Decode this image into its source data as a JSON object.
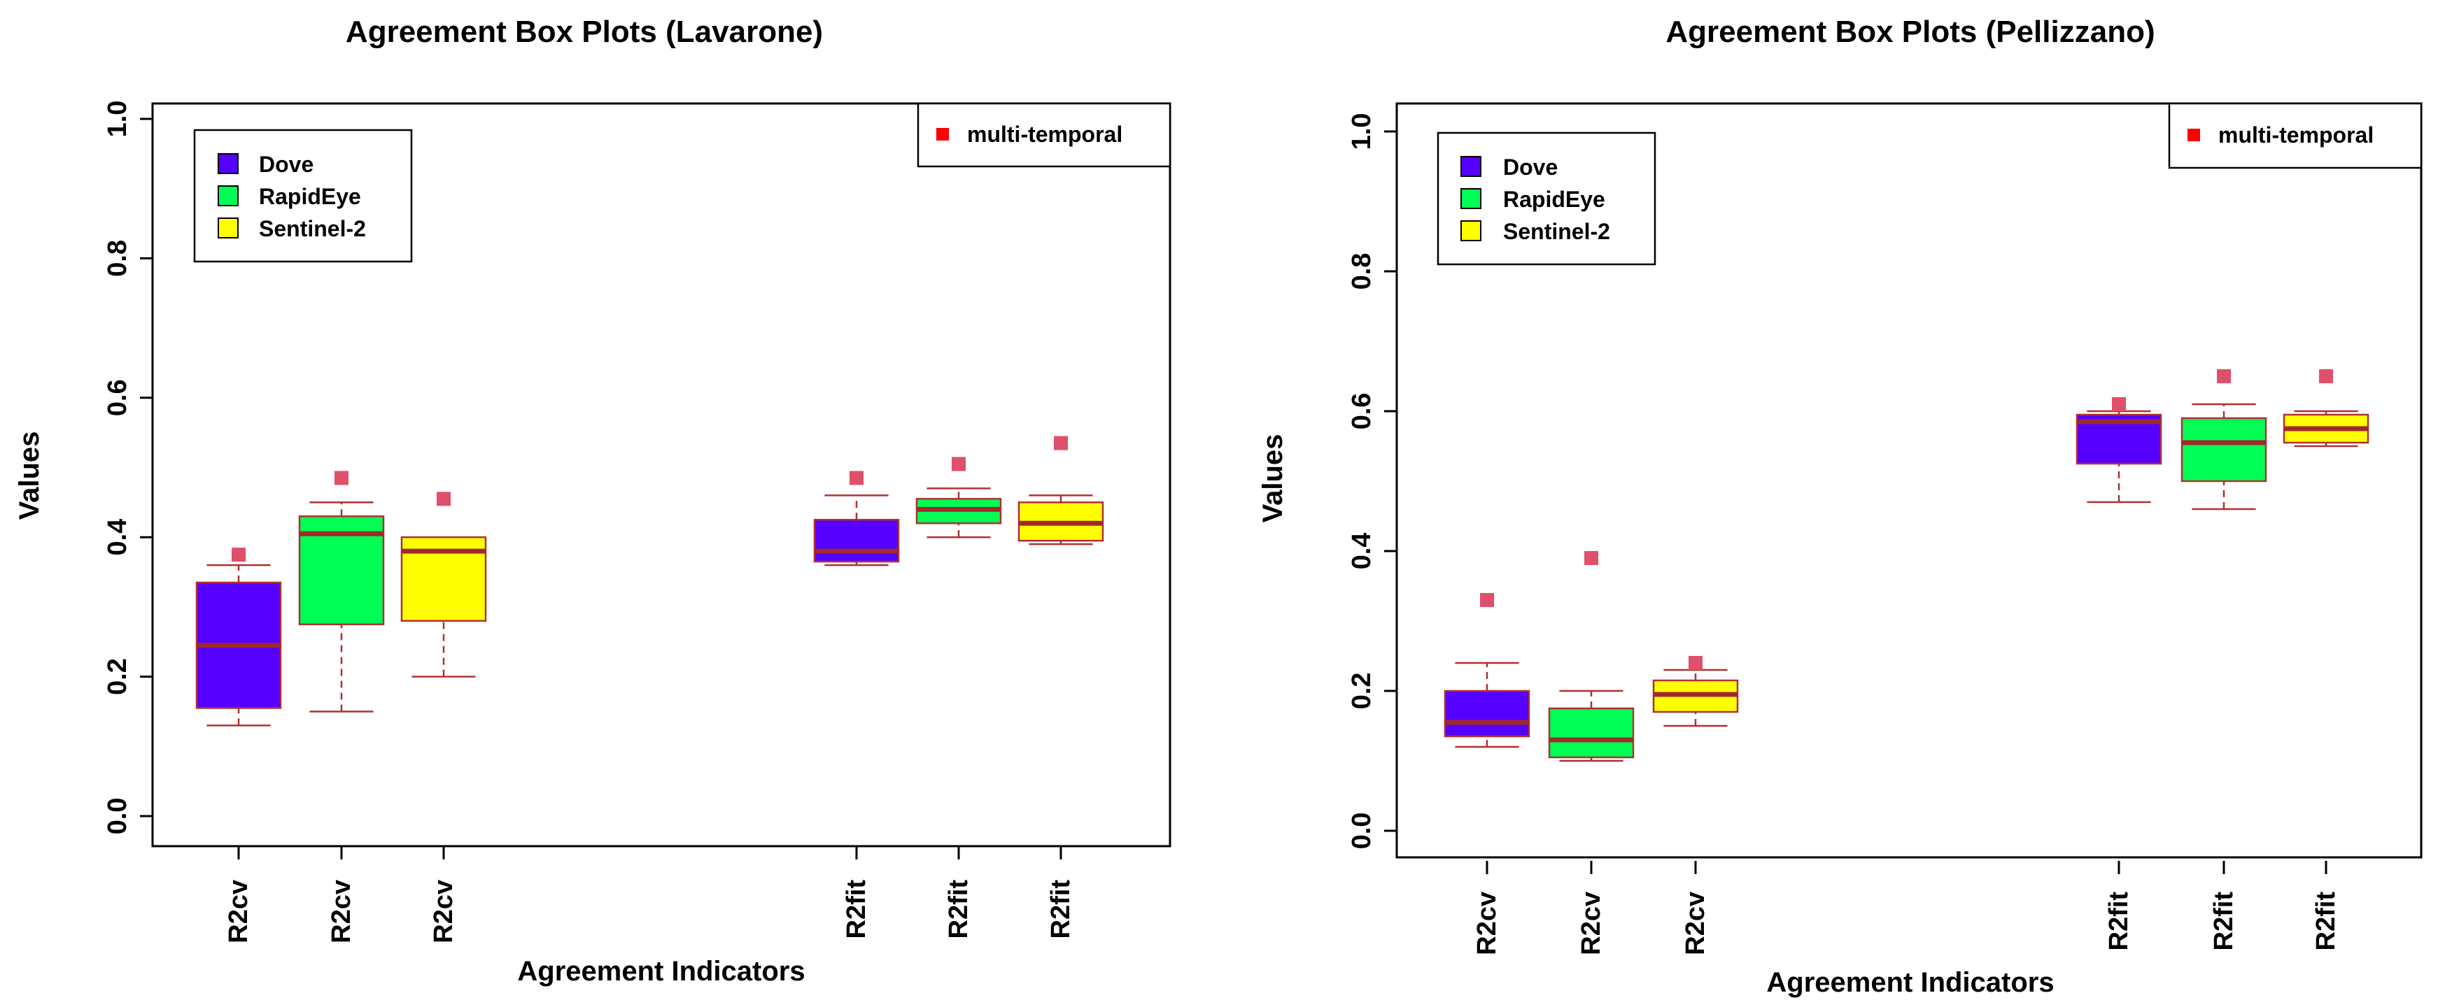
{
  "chart_data": [
    {
      "type": "boxplot",
      "title": "Agreement Box Plots (Lavarone)",
      "xlabel": "Agreement Indicators",
      "ylabel": "Values",
      "ylim": [
        0.0,
        1.0
      ],
      "yticks": [
        "0.0",
        "0.2",
        "0.4",
        "0.6",
        "0.8",
        "1.0"
      ],
      "legend": {
        "placement": "top-left",
        "items": [
          {
            "label": "Dove",
            "color": "#5500ff"
          },
          {
            "label": "RapidEye",
            "color": "#00ff55"
          },
          {
            "label": "Sentinel-2",
            "color": "#ffff00"
          }
        ]
      },
      "marker_legend": {
        "placement": "top-right",
        "label": "multi-temporal",
        "color": "#ff0000"
      },
      "boxes": [
        {
          "label": "R2cv",
          "series": "Dove",
          "color": "#5500ff",
          "whisker_low": 0.13,
          "q1": 0.155,
          "median": 0.245,
          "q3": 0.335,
          "whisker_high": 0.36,
          "multi_temporal": 0.375
        },
        {
          "label": "R2cv",
          "series": "RapidEye",
          "color": "#00ff55",
          "whisker_low": 0.15,
          "q1": 0.275,
          "median": 0.405,
          "q3": 0.43,
          "whisker_high": 0.45,
          "multi_temporal": 0.485
        },
        {
          "label": "R2cv",
          "series": "Sentinel-2",
          "color": "#ffff00",
          "whisker_low": 0.2,
          "q1": 0.28,
          "median": 0.38,
          "q3": 0.4,
          "whisker_high": 0.4,
          "multi_temporal": 0.455
        },
        {
          "label": "R2fit",
          "series": "Dove",
          "color": "#5500ff",
          "whisker_low": 0.36,
          "q1": 0.365,
          "median": 0.38,
          "q3": 0.425,
          "whisker_high": 0.46,
          "multi_temporal": 0.485
        },
        {
          "label": "R2fit",
          "series": "RapidEye",
          "color": "#00ff55",
          "whisker_low": 0.4,
          "q1": 0.42,
          "median": 0.44,
          "q3": 0.455,
          "whisker_high": 0.47,
          "multi_temporal": 0.505
        },
        {
          "label": "R2fit",
          "series": "Sentinel-2",
          "color": "#ffff00",
          "whisker_low": 0.39,
          "q1": 0.395,
          "median": 0.42,
          "q3": 0.45,
          "whisker_high": 0.46,
          "multi_temporal": 0.535
        }
      ]
    },
    {
      "type": "boxplot",
      "title": "Agreement Box Plots (Pellizzano)",
      "xlabel": "Agreement Indicators",
      "ylabel": "Values",
      "ylim": [
        0.0,
        1.0
      ],
      "yticks": [
        "0.0",
        "0.2",
        "0.4",
        "0.6",
        "0.8",
        "1.0"
      ],
      "legend": {
        "placement": "top-left",
        "items": [
          {
            "label": "Dove",
            "color": "#5500ff"
          },
          {
            "label": "RapidEye",
            "color": "#00ff55"
          },
          {
            "label": "Sentinel-2",
            "color": "#ffff00"
          }
        ]
      },
      "marker_legend": {
        "placement": "top-right",
        "label": "multi-temporal",
        "color": "#ff0000"
      },
      "boxes": [
        {
          "label": "R2cv",
          "series": "Dove",
          "color": "#5500ff",
          "whisker_low": 0.12,
          "q1": 0.135,
          "median": 0.155,
          "q3": 0.2,
          "whisker_high": 0.24,
          "multi_temporal": 0.33
        },
        {
          "label": "R2cv",
          "series": "RapidEye",
          "color": "#00ff55",
          "whisker_low": 0.1,
          "q1": 0.105,
          "median": 0.13,
          "q3": 0.175,
          "whisker_high": 0.2,
          "multi_temporal": 0.39
        },
        {
          "label": "R2cv",
          "series": "Sentinel-2",
          "color": "#ffff00",
          "whisker_low": 0.15,
          "q1": 0.17,
          "median": 0.195,
          "q3": 0.215,
          "whisker_high": 0.23,
          "multi_temporal": 0.24
        },
        {
          "label": "R2fit",
          "series": "Dove",
          "color": "#5500ff",
          "whisker_low": 0.47,
          "q1": 0.525,
          "median": 0.585,
          "q3": 0.595,
          "whisker_high": 0.6,
          "multi_temporal": 0.61
        },
        {
          "label": "R2fit",
          "series": "RapidEye",
          "color": "#00ff55",
          "whisker_low": 0.46,
          "q1": 0.5,
          "median": 0.555,
          "q3": 0.59,
          "whisker_high": 0.61,
          "multi_temporal": 0.65
        },
        {
          "label": "R2fit",
          "series": "Sentinel-2",
          "color": "#ffff00",
          "whisker_low": 0.55,
          "q1": 0.555,
          "median": 0.575,
          "q3": 0.595,
          "whisker_high": 0.6,
          "multi_temporal": 0.65
        }
      ]
    }
  ]
}
